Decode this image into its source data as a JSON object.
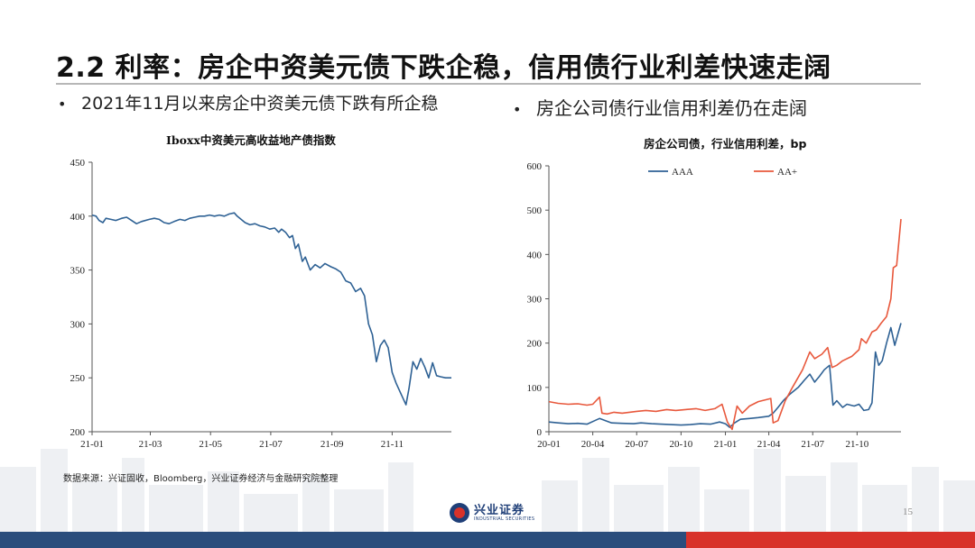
{
  "slide": {
    "title": "2.2 利率：房企中资美元债下跌企稳，信用债行业利差快速走阔",
    "bullet_left": "2021年11月以来房企中资美元债下跌有所企稳",
    "bullet_right": "房企公司债行业信用利差仍在走阔",
    "source": "数据来源：兴证固收，Bloomberg，兴业证券经济与金融研究院整理",
    "page_number": "15",
    "logo_cn": "兴业证券",
    "logo_en": "INDUSTRIAL SECURITIES",
    "colors": {
      "footer_blue": "#2a4d7c",
      "footer_red": "#d8322a",
      "line_blue": "#2e6194",
      "line_red": "#e8583c"
    }
  },
  "chart_data": [
    {
      "type": "line",
      "title": "Iboxx中资美元高收益地产债指数",
      "x_ticks": [
        "21-01",
        "21-03",
        "21-05",
        "21-07",
        "21-09",
        "21-11"
      ],
      "y_ticks": [
        "450",
        "400",
        "350",
        "300",
        "250",
        "200"
      ],
      "ylim": [
        200,
        450
      ],
      "xlim": [
        "2021-01-01",
        "2021-12-31"
      ],
      "grid": false,
      "series": [
        {
          "values": [
            [
              "2021-01-01",
              401
            ],
            [
              "2021-01-05",
              400
            ],
            [
              "2021-01-08",
              396
            ],
            [
              "2021-01-12",
              394
            ],
            [
              "2021-01-15",
              398
            ],
            [
              "2021-01-20",
              397
            ],
            [
              "2021-01-25",
              396
            ],
            [
              "2021-01-31",
              398
            ],
            [
              "2021-02-05",
              399
            ],
            [
              "2021-02-10",
              396
            ],
            [
              "2021-02-15",
              393
            ],
            [
              "2021-02-20",
              395
            ],
            [
              "2021-02-28",
              397
            ],
            [
              "2021-03-05",
              398
            ],
            [
              "2021-03-10",
              397
            ],
            [
              "2021-03-15",
              394
            ],
            [
              "2021-03-20",
              393
            ],
            [
              "2021-03-25",
              395
            ],
            [
              "2021-03-31",
              397
            ],
            [
              "2021-04-05",
              396
            ],
            [
              "2021-04-10",
              398
            ],
            [
              "2021-04-15",
              399
            ],
            [
              "2021-04-20",
              400
            ],
            [
              "2021-04-25",
              400
            ],
            [
              "2021-04-30",
              401
            ],
            [
              "2021-05-05",
              400
            ],
            [
              "2021-05-10",
              401
            ],
            [
              "2021-05-15",
              400
            ],
            [
              "2021-05-20",
              402
            ],
            [
              "2021-05-25",
              403
            ],
            [
              "2021-05-28",
              400
            ],
            [
              "2021-06-01",
              397
            ],
            [
              "2021-06-05",
              394
            ],
            [
              "2021-06-10",
              392
            ],
            [
              "2021-06-15",
              393
            ],
            [
              "2021-06-20",
              391
            ],
            [
              "2021-06-25",
              390
            ],
            [
              "2021-06-30",
              388
            ],
            [
              "2021-07-05",
              389
            ],
            [
              "2021-07-09",
              385
            ],
            [
              "2021-07-12",
              388
            ],
            [
              "2021-07-16",
              385
            ],
            [
              "2021-07-20",
              380
            ],
            [
              "2021-07-23",
              382
            ],
            [
              "2021-07-26",
              370
            ],
            [
              "2021-07-29",
              374
            ],
            [
              "2021-08-02",
              358
            ],
            [
              "2021-08-05",
              362
            ],
            [
              "2021-08-10",
              350
            ],
            [
              "2021-08-15",
              355
            ],
            [
              "2021-08-20",
              352
            ],
            [
              "2021-08-25",
              356
            ],
            [
              "2021-08-31",
              353
            ],
            [
              "2021-09-05",
              351
            ],
            [
              "2021-09-10",
              348
            ],
            [
              "2021-09-15",
              340
            ],
            [
              "2021-09-20",
              338
            ],
            [
              "2021-09-25",
              330
            ],
            [
              "2021-09-30",
              333
            ],
            [
              "2021-10-04",
              326
            ],
            [
              "2021-10-08",
              300
            ],
            [
              "2021-10-12",
              290
            ],
            [
              "2021-10-16",
              265
            ],
            [
              "2021-10-20",
              280
            ],
            [
              "2021-10-24",
              285
            ],
            [
              "2021-10-28",
              278
            ],
            [
              "2021-11-01",
              255
            ],
            [
              "2021-11-05",
              245
            ],
            [
              "2021-11-10",
              235
            ],
            [
              "2021-11-15",
              225
            ],
            [
              "2021-11-18",
              240
            ],
            [
              "2021-11-22",
              265
            ],
            [
              "2021-11-26",
              258
            ],
            [
              "2021-11-30",
              268
            ],
            [
              "2021-12-04",
              260
            ],
            [
              "2021-12-08",
              250
            ],
            [
              "2021-12-12",
              264
            ],
            [
              "2021-12-16",
              252
            ],
            [
              "2021-12-20",
              251
            ],
            [
              "2021-12-25",
              250
            ],
            [
              "2021-12-31",
              250
            ]
          ]
        }
      ]
    },
    {
      "type": "line",
      "title": "房企公司债，行业信用利差，bp",
      "x_ticks": [
        "20-01",
        "20-04",
        "20-07",
        "20-10",
        "21-01",
        "21-04",
        "21-07",
        "21-10"
      ],
      "y_ticks": [
        "600",
        "500",
        "400",
        "300",
        "200",
        "100",
        "0"
      ],
      "ylim": [
        0,
        600
      ],
      "xlim": [
        "2020-01-01",
        "2021-12-31"
      ],
      "legend": "top",
      "grid": false,
      "series": [
        {
          "name": "AAA",
          "color": "#2e6194",
          "values": [
            [
              "2020-01-01",
              22
            ],
            [
              "2020-01-20",
              20
            ],
            [
              "2020-02-10",
              18
            ],
            [
              "2020-03-01",
              19
            ],
            [
              "2020-03-20",
              17
            ],
            [
              "2020-04-05",
              25
            ],
            [
              "2020-04-15",
              30
            ],
            [
              "2020-04-25",
              26
            ],
            [
              "2020-05-10",
              20
            ],
            [
              "2020-06-01",
              19
            ],
            [
              "2020-06-25",
              18
            ],
            [
              "2020-07-10",
              20
            ],
            [
              "2020-08-01",
              18
            ],
            [
              "2020-08-20",
              17
            ],
            [
              "2020-09-10",
              16
            ],
            [
              "2020-10-01",
              15
            ],
            [
              "2020-10-20",
              16
            ],
            [
              "2020-11-10",
              18
            ],
            [
              "2020-12-01",
              17
            ],
            [
              "2020-12-20",
              22
            ],
            [
              "2021-01-01",
              18
            ],
            [
              "2021-01-10",
              10
            ],
            [
              "2021-01-20",
              20
            ],
            [
              "2021-02-01",
              28
            ],
            [
              "2021-02-20",
              30
            ],
            [
              "2021-03-10",
              32
            ],
            [
              "2021-04-01",
              35
            ],
            [
              "2021-04-10",
              42
            ],
            [
              "2021-04-20",
              55
            ],
            [
              "2021-05-01",
              70
            ],
            [
              "2021-05-15",
              85
            ],
            [
              "2021-06-01",
              100
            ],
            [
              "2021-06-15",
              118
            ],
            [
              "2021-06-25",
              130
            ],
            [
              "2021-07-05",
              112
            ],
            [
              "2021-07-15",
              125
            ],
            [
              "2021-07-25",
              140
            ],
            [
              "2021-08-05",
              150
            ],
            [
              "2021-08-12",
              60
            ],
            [
              "2021-08-20",
              70
            ],
            [
              "2021-09-01",
              55
            ],
            [
              "2021-09-10",
              62
            ],
            [
              "2021-09-25",
              58
            ],
            [
              "2021-10-05",
              62
            ],
            [
              "2021-10-15",
              48
            ],
            [
              "2021-10-25",
              50
            ],
            [
              "2021-11-01",
              65
            ],
            [
              "2021-11-08",
              180
            ],
            [
              "2021-11-15",
              150
            ],
            [
              "2021-11-22",
              160
            ],
            [
              "2021-12-01",
              200
            ],
            [
              "2021-12-10",
              235
            ],
            [
              "2021-12-18",
              195
            ],
            [
              "2021-12-31",
              245
            ]
          ]
        },
        {
          "name": "AA+",
          "color": "#e8583c",
          "values": [
            [
              "2020-01-01",
              68
            ],
            [
              "2020-01-20",
              64
            ],
            [
              "2020-02-10",
              62
            ],
            [
              "2020-03-01",
              63
            ],
            [
              "2020-03-20",
              60
            ],
            [
              "2020-04-01",
              62
            ],
            [
              "2020-04-15",
              78
            ],
            [
              "2020-04-20",
              42
            ],
            [
              "2020-05-01",
              40
            ],
            [
              "2020-05-15",
              44
            ],
            [
              "2020-06-01",
              42
            ],
            [
              "2020-07-01",
              46
            ],
            [
              "2020-07-20",
              48
            ],
            [
              "2020-08-10",
              46
            ],
            [
              "2020-09-01",
              50
            ],
            [
              "2020-09-20",
              48
            ],
            [
              "2020-10-10",
              50
            ],
            [
              "2020-11-01",
              52
            ],
            [
              "2020-11-20",
              48
            ],
            [
              "2020-12-10",
              52
            ],
            [
              "2020-12-25",
              62
            ],
            [
              "2021-01-05",
              22
            ],
            [
              "2021-01-15",
              5
            ],
            [
              "2021-01-25",
              58
            ],
            [
              "2021-02-05",
              42
            ],
            [
              "2021-02-20",
              58
            ],
            [
              "2021-03-10",
              68
            ],
            [
              "2021-03-25",
              72
            ],
            [
              "2021-04-05",
              75
            ],
            [
              "2021-04-10",
              20
            ],
            [
              "2021-04-20",
              25
            ],
            [
              "2021-05-05",
              70
            ],
            [
              "2021-05-20",
              100
            ],
            [
              "2021-06-10",
              140
            ],
            [
              "2021-06-25",
              180
            ],
            [
              "2021-07-05",
              165
            ],
            [
              "2021-07-20",
              175
            ],
            [
              "2021-08-01",
              190
            ],
            [
              "2021-08-10",
              145
            ],
            [
              "2021-08-20",
              150
            ],
            [
              "2021-09-01",
              160
            ],
            [
              "2021-09-20",
              170
            ],
            [
              "2021-10-05",
              185
            ],
            [
              "2021-10-10",
              210
            ],
            [
              "2021-10-20",
              200
            ],
            [
              "2021-11-01",
              225
            ],
            [
              "2021-11-10",
              230
            ],
            [
              "2021-11-20",
              245
            ],
            [
              "2021-12-01",
              260
            ],
            [
              "2021-12-10",
              300
            ],
            [
              "2021-12-15",
              370
            ],
            [
              "2021-12-22",
              375
            ],
            [
              "2021-12-31",
              480
            ]
          ]
        }
      ]
    }
  ]
}
